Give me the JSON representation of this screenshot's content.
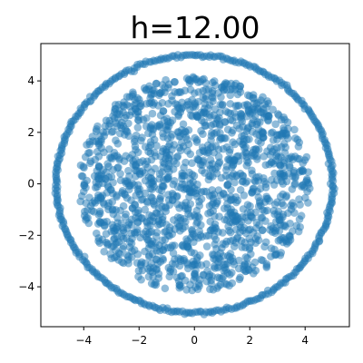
{
  "chart_data": {
    "type": "scatter",
    "title": "h=12.00",
    "xlabel": "",
    "ylabel": "",
    "xlim": [
      -5.55,
      5.6
    ],
    "ylim": [
      -5.55,
      5.45
    ],
    "xticks": [
      -4,
      -2,
      0,
      2,
      4
    ],
    "yticks": [
      -4,
      -2,
      0,
      2,
      4
    ],
    "xtick_labels": [
      "−4",
      "−2",
      "0",
      "2",
      "4"
    ],
    "ytick_labels": [
      "−4",
      "−2",
      "0",
      "2",
      "4"
    ],
    "grid": false,
    "marker_color": "#1f77b4",
    "marker_alpha": 0.5,
    "series": [
      {
        "points": {
          "ring": {
            "radius": 5.0,
            "count": 400
          },
          "interior_disc": {
            "radius": 4.2,
            "count": 1500
          }
        }
      }
    ]
  }
}
